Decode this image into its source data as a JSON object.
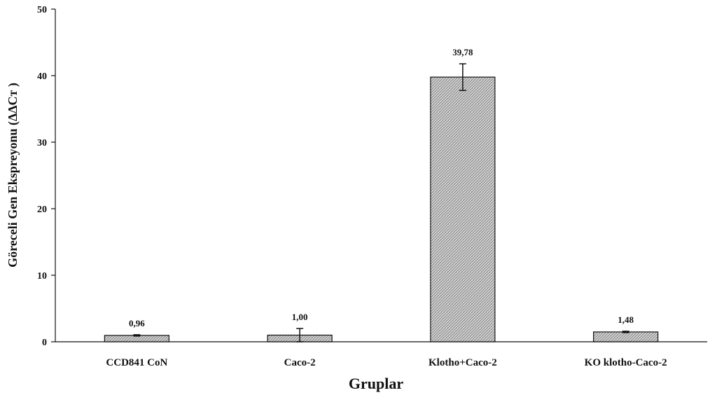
{
  "chart_data": {
    "type": "bar",
    "title": "",
    "xlabel": "Gruplar",
    "ylabel": "Göreceli Gen Ekspreyonu  (ΔΔCт )",
    "ylim": [
      0,
      50
    ],
    "yticks": [
      "0",
      "10",
      "20",
      "30",
      "40",
      "50"
    ],
    "categories": [
      "CCD841 CoN",
      "Caco-2",
      "Klotho+Caco-2",
      "KO klotho-Caco-2"
    ],
    "values": [
      0.96,
      1.0,
      39.78,
      1.48
    ],
    "value_labels": [
      "0,96",
      "1,00",
      "39,78",
      "1,48"
    ],
    "errors": [
      0.1,
      1.0,
      2.0,
      0.1
    ],
    "grid": false,
    "legend": "none",
    "bar_fill": "#c8c8c8",
    "bar_stroke": "#111111"
  }
}
